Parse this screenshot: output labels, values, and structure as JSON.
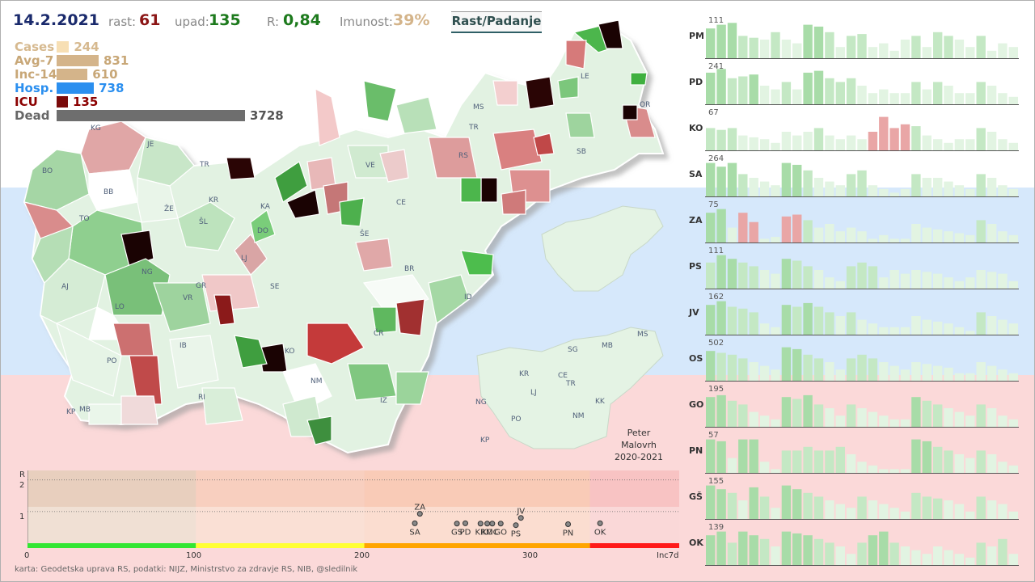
{
  "header": {
    "date": "14.2.2021",
    "rast_label": "rast:",
    "rast_value": "61",
    "upad_label": "upad:",
    "upad_value": "135",
    "r_label": "R:",
    "r_value": "0,84",
    "imunost_label": "Imunost:",
    "imunost_value": "39%",
    "button_label": "Rast/Padanje"
  },
  "stats": [
    {
      "label": "Cases",
      "value": "244",
      "color": "#f7dfb4",
      "label_color": "#d6b98f",
      "frac": 0.066
    },
    {
      "label": "Avg-7",
      "value": "831",
      "color": "#d4b48a",
      "label_color": "#c8a777",
      "frac": 0.223
    },
    {
      "label": "Inc-14",
      "value": "610",
      "color": "#d4b48a",
      "label_color": "#c8a777",
      "frac": 0.164
    },
    {
      "label": "Hosp.",
      "value": "738",
      "color": "#2b8fef",
      "label_color": "#2b8fef",
      "frac": 0.198
    },
    {
      "label": "ICU",
      "value": "135",
      "color": "#7a0a0a",
      "label_color": "#8b0000",
      "frac": 0.036
    },
    {
      "label": "Dead",
      "value": "3728",
      "color": "#6e6e6e",
      "label_color": "#666",
      "frac": 1.0
    }
  ],
  "map_labels": [
    "KG",
    "JE",
    "BO",
    "BB",
    "TR",
    "ŽE",
    "KR",
    "ŠL",
    "TO",
    "KA",
    "DO",
    "LJ",
    "VE",
    "CE",
    "TR",
    "ŠE",
    "BR",
    "ID",
    "NG",
    "AJ",
    "LO",
    "VR",
    "GR",
    "SE",
    "PO",
    "IB",
    "RI",
    "KO",
    "NM",
    "ČR",
    "IZ",
    "KP",
    "MB",
    "MS",
    "LE",
    "OR",
    "SB",
    "RS"
  ],
  "mini_map_labels": [
    "SG",
    "MB",
    "MS",
    "KR",
    "CE",
    "LJ",
    "TR",
    "NG",
    "KK",
    "PO",
    "NM",
    "KP"
  ],
  "credit": "karta: Geodetska uprava RS,  podatki: NIJZ, Ministrstvo za zdravje RS, NIB, @sledilnik",
  "signature": {
    "l1": "Peter",
    "l2": "Malovrh",
    "l3": "2020-2021"
  },
  "chart_data": [
    {
      "type": "scatter",
      "title": "",
      "xlabel": "Inc7d",
      "ylabel": "R",
      "xticks": [
        "0",
        "100",
        "200",
        "300"
      ],
      "yticks": [
        "1",
        "2"
      ],
      "xlim": [
        0,
        387
      ],
      "ylim": [
        0,
        2.3
      ],
      "points": [
        {
          "label": "ZA",
          "x": 233,
          "y": 0.93
        },
        {
          "label": "SA",
          "x": 230,
          "y": 0.63
        },
        {
          "label": "GS",
          "x": 255,
          "y": 0.62
        },
        {
          "label": "PD",
          "x": 260,
          "y": 0.63
        },
        {
          "label": "KR",
          "x": 269,
          "y": 0.62
        },
        {
          "label": "KO",
          "x": 273,
          "y": 0.62
        },
        {
          "label": "MC",
          "x": 276,
          "y": 0.62
        },
        {
          "label": "GO",
          "x": 281,
          "y": 0.62
        },
        {
          "label": "JV",
          "x": 293,
          "y": 0.8
        },
        {
          "label": "PS",
          "x": 290,
          "y": 0.57
        },
        {
          "label": "PN",
          "x": 321,
          "y": 0.6
        },
        {
          "label": "OK",
          "x": 340,
          "y": 0.63
        }
      ]
    },
    {
      "type": "bar",
      "series": [
        {
          "name": "PM",
          "max": "111",
          "values": [
            0.8,
            0.9,
            0.95,
            0.6,
            0.55,
            0.5,
            0.7,
            0.5,
            0.4,
            0.9,
            0.85,
            0.7,
            0.3,
            0.6,
            0.65,
            0.3,
            0.4,
            0.2,
            0.5,
            0.6,
            0.3,
            0.7,
            0.6,
            0.5,
            0.3,
            0.6,
            0.2,
            0.4,
            0.3
          ]
        },
        {
          "name": "PD",
          "max": "241",
          "values": [
            0.85,
            0.95,
            0.7,
            0.75,
            0.8,
            0.5,
            0.4,
            0.6,
            0.4,
            0.85,
            0.9,
            0.7,
            0.6,
            0.7,
            0.5,
            0.3,
            0.4,
            0.3,
            0.3,
            0.6,
            0.4,
            0.6,
            0.5,
            0.3,
            0.3,
            0.6,
            0.5,
            0.3,
            0.2
          ]
        },
        {
          "name": "KO",
          "max": "67",
          "values": [
            0.6,
            0.55,
            0.6,
            0.4,
            0.35,
            0.3,
            0.2,
            0.5,
            0.4,
            0.5,
            0.6,
            0.4,
            0.3,
            0.4,
            0.3,
            0.5,
            0.9,
            0.6,
            0.7,
            0.65,
            0.4,
            0.3,
            0.2,
            0.3,
            0.3,
            0.6,
            0.5,
            0.3,
            0.2
          ]
        },
        {
          "name": "SA",
          "max": "264",
          "values": [
            0.9,
            0.8,
            0.9,
            0.6,
            0.5,
            0.4,
            0.3,
            0.9,
            0.85,
            0.7,
            0.5,
            0.4,
            0.3,
            0.6,
            0.7,
            0.3,
            0.2,
            0.1,
            0.2,
            0.6,
            0.5,
            0.5,
            0.4,
            0.3,
            0.2,
            0.6,
            0.5,
            0.3,
            0.2
          ]
        },
        {
          "name": "ZA",
          "max": "75",
          "values": [
            0.8,
            0.9,
            0.4,
            0.8,
            0.55,
            0.1,
            0.15,
            0.7,
            0.75,
            0.6,
            0.4,
            0.5,
            0.3,
            0.4,
            0.3,
            0.1,
            0.2,
            0.1,
            0.1,
            0.5,
            0.4,
            0.35,
            0.3,
            0.25,
            0.2,
            0.6,
            0.5,
            0.3,
            0.2
          ]
        },
        {
          "name": "PS",
          "max": "111",
          "values": [
            0.7,
            0.9,
            0.8,
            0.7,
            0.6,
            0.5,
            0.4,
            0.8,
            0.75,
            0.6,
            0.5,
            0.3,
            0.2,
            0.6,
            0.7,
            0.6,
            0.3,
            0.5,
            0.4,
            0.5,
            0.45,
            0.4,
            0.3,
            0.2,
            0.3,
            0.5,
            0.45,
            0.4,
            0.2
          ]
        },
        {
          "name": "JV",
          "max": "162",
          "values": [
            0.8,
            0.9,
            0.75,
            0.7,
            0.6,
            0.3,
            0.2,
            0.8,
            0.75,
            0.85,
            0.75,
            0.6,
            0.5,
            0.6,
            0.4,
            0.3,
            0.2,
            0.2,
            0.2,
            0.5,
            0.4,
            0.35,
            0.3,
            0.2,
            0.1,
            0.6,
            0.5,
            0.4,
            0.3
          ]
        },
        {
          "name": "OS",
          "max": "502",
          "values": [
            0.8,
            0.75,
            0.7,
            0.6,
            0.5,
            0.4,
            0.3,
            0.9,
            0.85,
            0.7,
            0.6,
            0.5,
            0.3,
            0.6,
            0.7,
            0.6,
            0.5,
            0.4,
            0.3,
            0.5,
            0.45,
            0.4,
            0.35,
            0.2,
            0.2,
            0.5,
            0.4,
            0.3,
            0.2
          ]
        },
        {
          "name": "GO",
          "max": "195",
          "values": [
            0.8,
            0.85,
            0.7,
            0.6,
            0.4,
            0.3,
            0.2,
            0.8,
            0.75,
            0.85,
            0.6,
            0.5,
            0.3,
            0.6,
            0.5,
            0.4,
            0.3,
            0.2,
            0.2,
            0.8,
            0.7,
            0.6,
            0.5,
            0.4,
            0.3,
            0.6,
            0.5,
            0.3,
            0.2
          ]
        },
        {
          "name": "PN",
          "max": "57",
          "values": [
            0.9,
            0.85,
            0.4,
            0.9,
            0.9,
            0.3,
            0.1,
            0.6,
            0.6,
            0.7,
            0.6,
            0.6,
            0.7,
            0.5,
            0.3,
            0.2,
            0.1,
            0.1,
            0.1,
            0.9,
            0.85,
            0.7,
            0.6,
            0.5,
            0.4,
            0.6,
            0.5,
            0.3,
            0.2
          ]
        },
        {
          "name": "GŠ",
          "max": "155",
          "values": [
            0.9,
            0.8,
            0.7,
            0.5,
            0.85,
            0.6,
            0.3,
            0.9,
            0.8,
            0.7,
            0.6,
            0.5,
            0.4,
            0.3,
            0.6,
            0.5,
            0.4,
            0.3,
            0.2,
            0.7,
            0.6,
            0.55,
            0.5,
            0.4,
            0.2,
            0.6,
            0.5,
            0.4,
            0.2
          ]
        },
        {
          "name": "OK",
          "max": "139",
          "values": [
            0.8,
            0.9,
            0.6,
            0.9,
            0.8,
            0.7,
            0.5,
            0.9,
            0.85,
            0.8,
            0.7,
            0.6,
            0.5,
            0.3,
            0.6,
            0.8,
            0.9,
            0.6,
            0.5,
            0.4,
            0.3,
            0.5,
            0.4,
            0.3,
            0.2,
            0.6,
            0.5,
            0.7,
            0.3
          ]
        }
      ]
    }
  ]
}
